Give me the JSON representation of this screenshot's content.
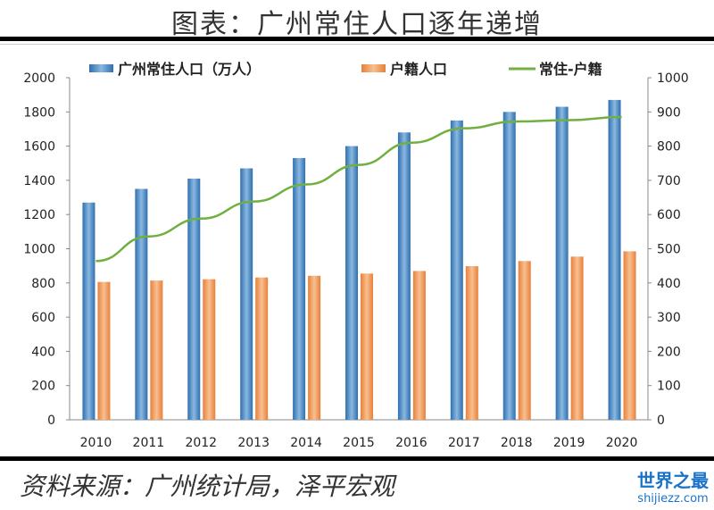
{
  "title": "图表：广州常住人口逐年递增",
  "source": "资料来源：广州统计局，泽平宏观",
  "watermark": {
    "name": "世界之最",
    "url": "shijiezz.com"
  },
  "colors": {
    "resident": "#4a8bc6",
    "hukou": "#f0a060",
    "diff": "#70b040"
  },
  "chart_data": {
    "type": "bar+line",
    "categories": [
      "2010",
      "2011",
      "2012",
      "2013",
      "2014",
      "2015",
      "2016",
      "2017",
      "2018",
      "2019",
      "2020"
    ],
    "series": [
      {
        "name": "广州常住人口（万人）",
        "type": "bar",
        "axis": "left",
        "values": [
          1270,
          1350,
          1410,
          1470,
          1530,
          1600,
          1680,
          1750,
          1800,
          1830,
          1870
        ]
      },
      {
        "name": "户籍人口",
        "type": "bar",
        "axis": "left",
        "values": [
          806,
          814,
          822,
          832,
          842,
          855,
          870,
          898,
          928,
          954,
          985
        ]
      },
      {
        "name": "常住-户籍",
        "type": "line",
        "axis": "right",
        "values": [
          464,
          536,
          588,
          638,
          688,
          745,
          810,
          852,
          872,
          876,
          885
        ]
      }
    ],
    "ylim_left": [
      0,
      2000
    ],
    "yticks_left": [
      0,
      200,
      400,
      600,
      800,
      1000,
      1200,
      1400,
      1600,
      1800,
      2000
    ],
    "ylim_right": [
      0,
      1000
    ],
    "yticks_right": [
      0,
      100,
      200,
      300,
      400,
      500,
      600,
      700,
      800,
      900,
      1000
    ],
    "legend": "top",
    "grid": false
  }
}
